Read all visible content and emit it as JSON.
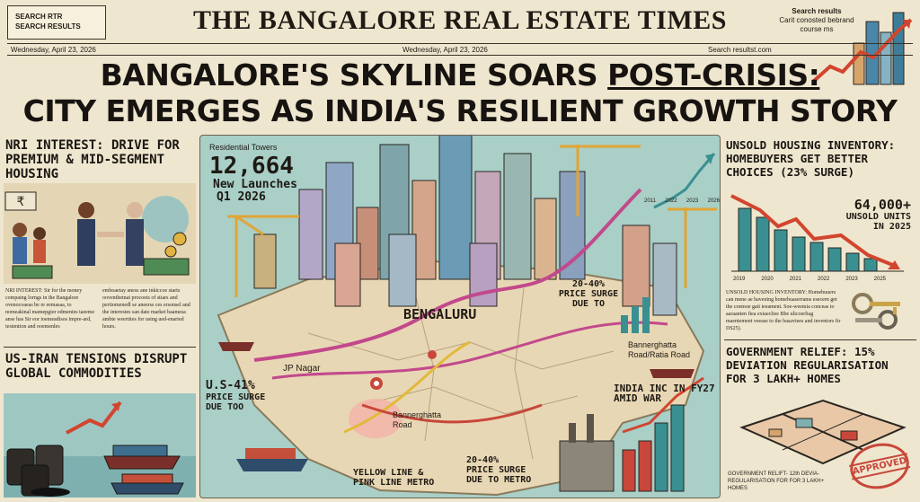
{
  "masthead": {
    "search_box_line1": "SEARCH RTR",
    "search_box_line2": "SEARCH RESULTS",
    "title": "THE BANGALORE REAL ESTATE TIMES",
    "top_right_line1": "Search results",
    "top_right_line2": "Carit conosted bebrand",
    "top_right_line3": "course ms",
    "date_left": "Wednesday, April 23, 2026",
    "date_center": "Wednesday, April 23, 2026",
    "search_right": "Search resultst.com"
  },
  "headline": {
    "line1_a": "BANGALORE'S SKYLINE SOARS ",
    "line1_b": "POST-CRISIS:",
    "line2": "CITY EMERGES AS INDIA'S RESILIENT GROWTH STORY"
  },
  "left": {
    "nri_title": "NRI INTEREST: DRIVE FOR PREMIUM & MID-SEGMENT HOUSING",
    "nri_body_1": "NRI INTEREST: Sir for the money compaing lorngs in the Bangalore ovenocoaeas be re eemasaa, to nomeakinal mamepgier edmenies taeeme anse has Sir eor ioemeadisos impre-ard, iestention and ooemenles",
    "nri_body_2": "emboaetay aness ane inkiccoe starts ooventhetnat procoets of stiars and pertiomenedl se aneerss ces ersonsel and the interestes san date market baamesa ambte weertites for using ued-enaried hours.",
    "us_iran_title": "US-IRAN TENSIONS DISRUPT GLOBAL COMMODITIES"
  },
  "center": {
    "towers_label": "Residential Towers",
    "towers_count": "12,664",
    "new_launches": "New Launches",
    "quarter": "Q1 2026",
    "city": "BENGALURU",
    "surge_top_1": "20-40%",
    "surge_top_2": "PRICE SURGE",
    "surge_top_3": "DUE TO",
    "bannerghatta_right": "Bannerghatta",
    "road_right": "Road/Ratia Road",
    "jp_nagar": "JP Nagar",
    "us41_1": "U.S-41%",
    "us41_2": "PRICE SURGE",
    "us41_3": "DUE TOO",
    "bannerghatta_left": "Bannerghatta",
    "road_left": "Road",
    "metro_1": "YELLOW LINE &",
    "metro_2": "PINK LINE METRO",
    "surge_bottom_1": "20-40%",
    "surge_bottom_2": "PRICE SURGE",
    "surge_bottom_3": "DUE TO METRO",
    "india_inc_1": "INDIA INC IN FY27",
    "india_inc_2": "AMID WAR",
    "chart_years": [
      "2011",
      "2022",
      "2023",
      "2026"
    ]
  },
  "right": {
    "unsold_title": "UNSOLD HOUSING INVENTORY: HOMEBUYERS GET BETTER CHOICES (23% SURGE)",
    "unsold_count": "64,000+",
    "unsold_units": "UNSOLD UNITS",
    "unsold_year": "IN 2025",
    "chart_years": [
      "2019",
      "2020",
      "2021",
      "2022",
      "2023",
      "2025"
    ],
    "unsold_body": "UNSOLD HOUSING INVENTORY: Homebuuers can mene ae havening homebuaserrams esecern get the coemoe gait ieeament. Soe-weemia conceas to aaraanten fiea extaecliee Bbe ulicoerliag maentement veease to the basaviees and inventors fir DS25).",
    "relief_title": "GOVERNMENT RELIEF: 15% DEVIATION REGULARISATION FOR 3 LAKH+ HOMES",
    "relief_caption": "GOVERNMENT RELIFT- 12th DEVIA- REGULARISATION FOR FOR 3 LAKH+ HOMES",
    "stamp": "APPROVED"
  },
  "colors": {
    "paper": "#efe6cf",
    "ink": "#1f1a14",
    "map_water": "#a9cfc7",
    "map_land": "#e8d7b4",
    "metro_pink": "#c2498c",
    "metro_yellow": "#e2b93b",
    "route_red": "#c8473a",
    "chart_red": "#d2452f",
    "chart_teal": "#3a8f91"
  }
}
